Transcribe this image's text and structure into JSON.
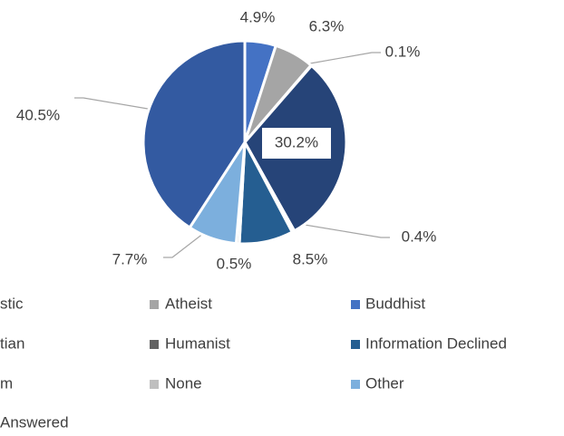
{
  "chart_data": {
    "type": "pie",
    "values": [
      4.9,
      6.3,
      0.1,
      30.2,
      0.4,
      8.5,
      0.5,
      7.7,
      40.5
    ],
    "value_labels": [
      "4.9%",
      "6.3%",
      "0.1%",
      "30.2%",
      "0.4%",
      "8.5%",
      "0.5%",
      "7.7%",
      "40.5%"
    ],
    "colors": [
      "#4472c4",
      "#a5a5a5",
      "#636363",
      "#264478",
      "#5a7fc0",
      "#255e91",
      "#d0d0d0",
      "#7cafdd",
      "#335aa1"
    ],
    "legend": [
      {
        "name": "stic"
      },
      {
        "name": "Atheist",
        "color": "#a5a5a5"
      },
      {
        "name": "Buddhist",
        "color": "#4472c4"
      },
      {
        "name": "tian"
      },
      {
        "name": "Humanist",
        "color": "#636363"
      },
      {
        "name": "Information Declined",
        "color": "#255e91"
      },
      {
        "name": "m"
      },
      {
        "name": "None",
        "color": "#bfbfbf"
      },
      {
        "name": "Other",
        "color": "#7cafdd"
      },
      {
        "name": "Answered"
      }
    ]
  }
}
